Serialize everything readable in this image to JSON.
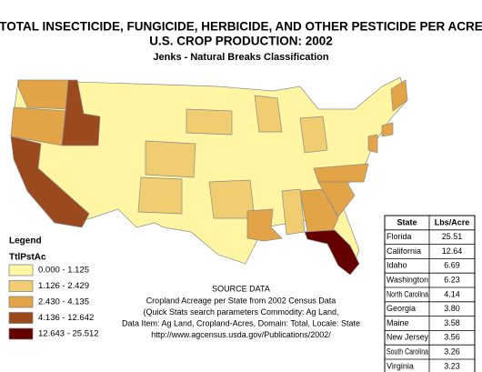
{
  "header": {
    "title": "TOTAL INSECTICIDE, FUNGICIDE, HERBICIDE, AND OTHER PESTICIDE PER ACRE",
    "subtitle": "U.S. CROP PRODUCTION: 2002",
    "classification": "Jenks - Natural Breaks Classification"
  },
  "legend": {
    "title": "Legend",
    "field": "TtlPstAc",
    "items": [
      {
        "label": "0.000 - 1.125",
        "color": "#fff5a3"
      },
      {
        "label": "1.126 - 2.429",
        "color": "#f1cd72"
      },
      {
        "label": "2.430 - 4.135",
        "color": "#e3a447"
      },
      {
        "label": "4.136 - 12.642",
        "color": "#9a4a1c"
      },
      {
        "label": "12.643 - 25.512",
        "color": "#640000"
      }
    ]
  },
  "source": {
    "heading": "SOURCE DATA",
    "lines": [
      "Cropland Acreage per State from 2002 Census Data",
      "(Quick Stats search parameters Commodity: Ag Land,",
      "Data Item: Ag Land, Cropland-Acres, Domain: Total, Locale: State",
      "http://www.agcensus.usda.gov/Publications/2002/"
    ]
  },
  "table": {
    "columns": [
      "State",
      "Lbs/Acre"
    ],
    "rows": [
      [
        "Florida",
        "25.51"
      ],
      [
        "California",
        "12.64"
      ],
      [
        "Idaho",
        "6.69"
      ],
      [
        "Washington",
        "6.23"
      ],
      [
        "North Carolina",
        "4.14"
      ],
      [
        "Georgia",
        "3.80"
      ],
      [
        "Maine",
        "3.58"
      ],
      [
        "New Jersey",
        "3.56"
      ],
      [
        "South Carolina",
        "3.26"
      ],
      [
        "Virginia",
        "3.23"
      ]
    ]
  }
}
